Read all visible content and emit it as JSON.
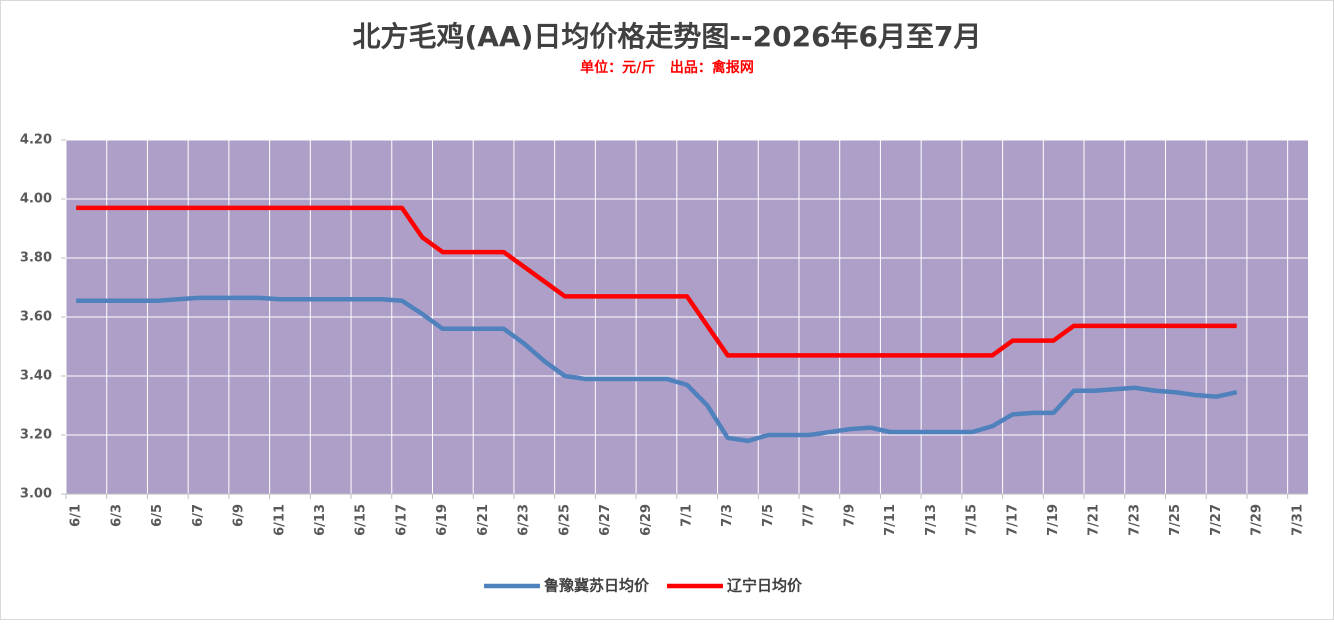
{
  "chart_data": {
    "type": "line",
    "title": "北方毛鸡(AA)日均价格走势图--2026年6月至7月",
    "subtitle": "单位：元/斤   出品：禽报网",
    "categories": [
      "6/1",
      null,
      "6/3",
      null,
      "6/5",
      null,
      "6/7",
      null,
      "6/9",
      null,
      "6/11",
      null,
      "6/13",
      null,
      "6/15",
      null,
      "6/17",
      null,
      "6/19",
      null,
      "6/21",
      null,
      "6/23",
      null,
      "6/25",
      null,
      "6/27",
      null,
      "6/29",
      null,
      "7/1",
      null,
      "7/3",
      null,
      "7/5",
      null,
      "7/7",
      null,
      "7/9",
      null,
      "7/11",
      null,
      "7/13",
      null,
      "7/15",
      null,
      "7/17",
      null,
      "7/19",
      null,
      "7/21",
      null,
      "7/23",
      null,
      "7/25",
      null,
      "7/27",
      null,
      "7/29",
      null,
      "7/31"
    ],
    "series": [
      {
        "name": "鲁豫冀苏日均价",
        "color": "#4f81bd",
        "values": [
          3.655,
          3.655,
          3.655,
          3.655,
          3.655,
          3.66,
          3.665,
          3.665,
          3.665,
          3.665,
          3.66,
          3.66,
          3.66,
          3.66,
          3.66,
          3.66,
          3.655,
          3.61,
          3.56,
          3.56,
          3.56,
          3.56,
          3.51,
          3.45,
          3.4,
          3.39,
          3.39,
          3.39,
          3.39,
          3.39,
          3.37,
          3.3,
          3.19,
          3.18,
          3.2,
          3.2,
          3.2,
          3.21,
          3.22,
          3.225,
          3.21,
          3.21,
          3.21,
          3.21,
          3.21,
          3.23,
          3.27,
          3.275,
          3.275,
          3.35,
          3.35,
          3.355,
          3.36,
          3.35,
          3.345,
          3.335,
          3.33,
          3.345,
          null,
          null,
          null
        ]
      },
      {
        "name": "辽宁日均价",
        "color": "#ff0000",
        "values": [
          3.97,
          3.97,
          3.97,
          3.97,
          3.97,
          3.97,
          3.97,
          3.97,
          3.97,
          3.97,
          3.97,
          3.97,
          3.97,
          3.97,
          3.97,
          3.97,
          3.97,
          3.87,
          3.82,
          3.82,
          3.82,
          3.82,
          3.77,
          3.72,
          3.67,
          3.67,
          3.67,
          3.67,
          3.67,
          3.67,
          3.67,
          3.57,
          3.47,
          3.47,
          3.47,
          3.47,
          3.47,
          3.47,
          3.47,
          3.47,
          3.47,
          3.47,
          3.47,
          3.47,
          3.47,
          3.47,
          3.52,
          3.52,
          3.52,
          3.57,
          3.57,
          3.57,
          3.57,
          3.57,
          3.57,
          3.57,
          3.57,
          3.57,
          null,
          null,
          null
        ]
      }
    ],
    "ylim": [
      3.0,
      4.2
    ],
    "yticks": [
      {
        "value": 3.0,
        "label": "3.00"
      },
      {
        "value": 3.2,
        "label": "3.20"
      },
      {
        "value": 3.4,
        "label": "3.40"
      },
      {
        "value": 3.6,
        "label": "3.60"
      },
      {
        "value": 3.8,
        "label": "3.80"
      },
      {
        "value": 4.0,
        "label": "4.00"
      },
      {
        "value": 4.2,
        "label": "4.20"
      }
    ],
    "grid": true,
    "plot_background": "#ae9fc8",
    "legend": "bottom"
  }
}
